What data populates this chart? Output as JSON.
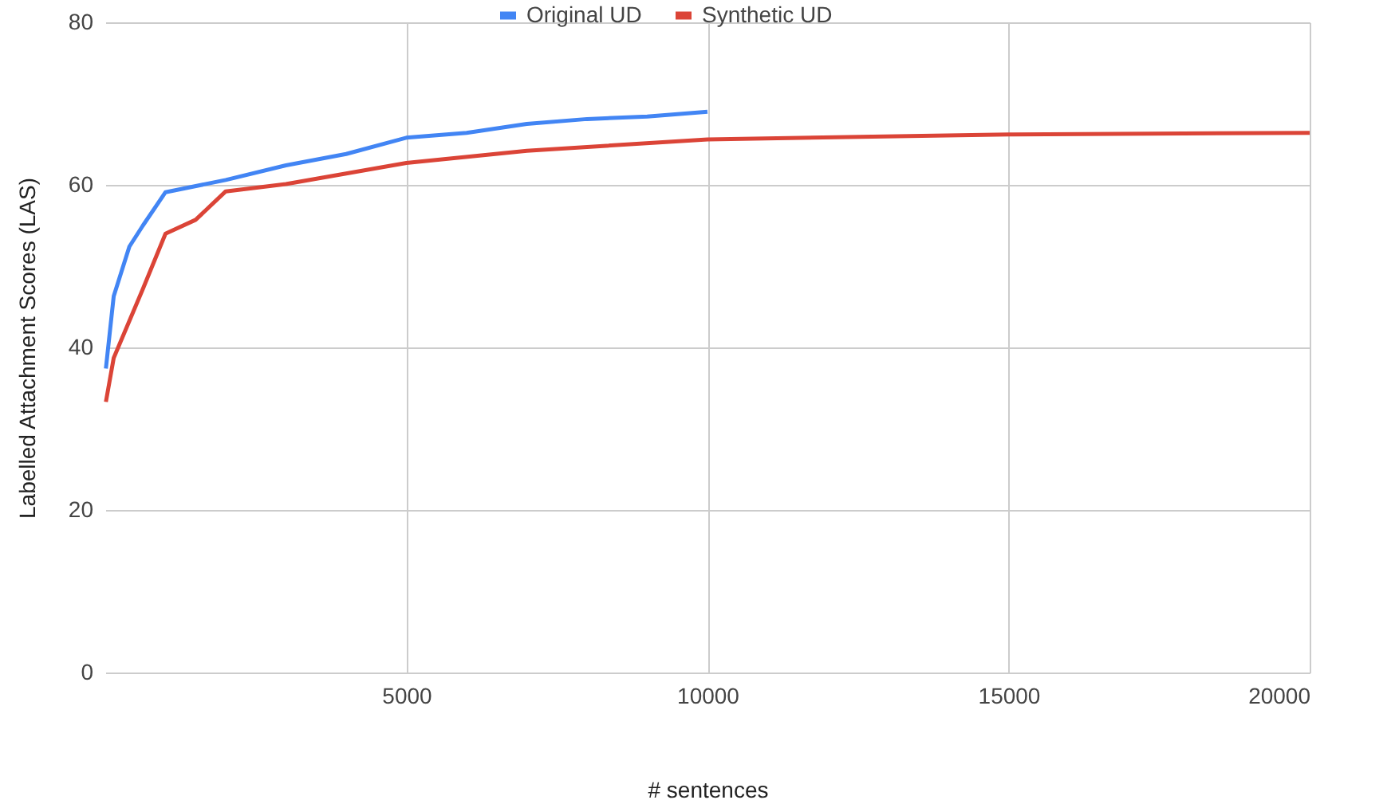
{
  "chart_data": {
    "type": "line",
    "xlabel": "# sentences",
    "ylabel": "Labelled Attachment Scores (LAS)",
    "xlim": [
      0,
      20000
    ],
    "ylim": [
      0,
      80
    ],
    "xticks": [
      5000,
      10000,
      15000,
      20000
    ],
    "yticks": [
      0,
      20,
      40,
      60,
      80
    ],
    "grid": true,
    "legend": "top",
    "series": [
      {
        "name": "Original UD",
        "color": "#4285f4",
        "x": [
          10,
          140,
          400,
          625,
          1000,
          2000,
          3000,
          4000,
          5000,
          6000,
          7000,
          8000,
          9000,
          10000
        ],
        "values": [
          37.4,
          46.3,
          52.4,
          55,
          59.1,
          60.6,
          62.4,
          63.8,
          65.8,
          66.4,
          67.5,
          68.1,
          68.4,
          69.0
        ]
      },
      {
        "name": "Synthetic UD",
        "color": "#db4437",
        "x": [
          10,
          140,
          625,
          1000,
          1500,
          2000,
          3000,
          4000,
          5000,
          7000,
          10000,
          15000,
          20000
        ],
        "values": [
          33.3,
          38.7,
          47.2,
          54,
          55.7,
          59.2,
          60.1,
          61.4,
          62.7,
          64.2,
          65.6,
          66.2,
          66.4
        ]
      }
    ]
  }
}
